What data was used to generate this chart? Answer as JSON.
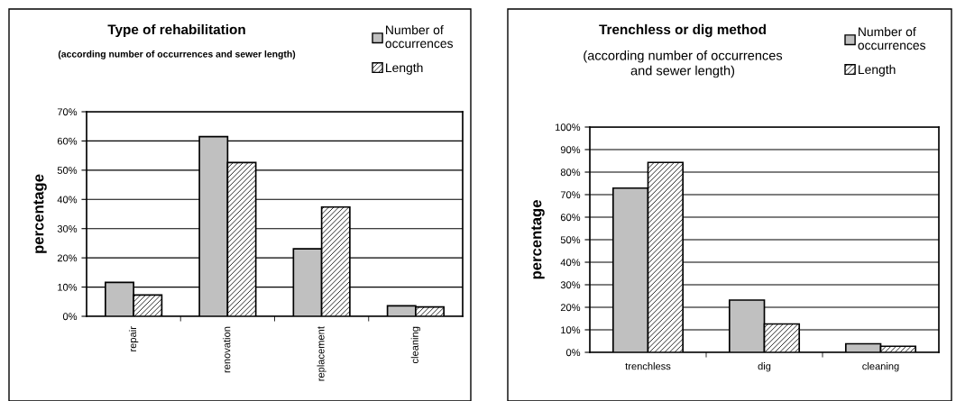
{
  "chart_data": [
    {
      "type": "bar",
      "title": "Type of rehabilitation",
      "subtitle": "(according number of occurrences and sewer length)",
      "ylabel": "percentage",
      "categories": [
        "repair",
        "renovation",
        "replacement",
        "cleaning"
      ],
      "series": [
        {
          "name": "Number of\noccurrences",
          "color": "#c0c0c0",
          "values": [
            11.6,
            61.5,
            23.1,
            3.6
          ]
        },
        {
          "name": "Length",
          "color": "#000000",
          "values": [
            7.3,
            52.6,
            37.4,
            3.2
          ]
        }
      ],
      "ylim": [
        0,
        70
      ],
      "yticks": [
        {
          "value": 0,
          "label": "0%"
        },
        {
          "value": 10,
          "label": "10%"
        },
        {
          "value": 20,
          "label": "20%"
        },
        {
          "value": 30,
          "label": "30%"
        },
        {
          "value": 40,
          "label": "40%"
        },
        {
          "value": 50,
          "label": "50%"
        },
        {
          "value": 60,
          "label": "60%"
        },
        {
          "value": 70,
          "label": "70%"
        }
      ],
      "grid": "y",
      "legend": "top right"
    },
    {
      "type": "bar",
      "title": "Trenchless or dig method",
      "subtitle": "(according number of occurrences\nand sewer length)",
      "ylabel": "percentage",
      "categories": [
        "trenchless",
        "dig",
        "cleaning"
      ],
      "series": [
        {
          "name": "Number of\noccurrences",
          "color": "#c0c0c0",
          "values": [
            72.9,
            23.2,
            3.8
          ]
        },
        {
          "name": "Length",
          "color": "#000000",
          "values": [
            84.3,
            12.6,
            2.7
          ]
        }
      ],
      "ylim": [
        0,
        100
      ],
      "yticks": [
        {
          "value": 0,
          "label": "0%"
        },
        {
          "value": 10,
          "label": "10%"
        },
        {
          "value": 20,
          "label": "20%"
        },
        {
          "value": 30,
          "label": "30%"
        },
        {
          "value": 40,
          "label": "40%"
        },
        {
          "value": 50,
          "label": "50%"
        },
        {
          "value": 60,
          "label": "60%"
        },
        {
          "value": 70,
          "label": "70%"
        },
        {
          "value": 80,
          "label": "80%"
        },
        {
          "value": 90,
          "label": "90%"
        },
        {
          "value": 100,
          "label": "100%"
        }
      ],
      "grid": "y",
      "legend": "top right"
    }
  ]
}
